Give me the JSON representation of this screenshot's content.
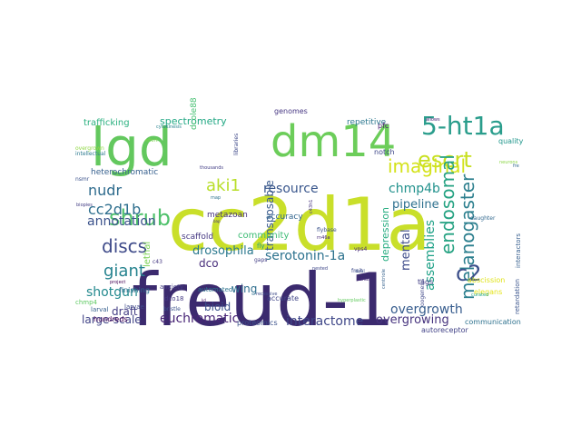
{
  "words": [
    {
      "text": "freud-1",
      "color": "#3b2a6e"
    },
    {
      "text": "cc2d1a",
      "color": "#c9df2a"
    },
    {
      "text": "lgd",
      "color": "#63c85e"
    },
    {
      "text": "dm14",
      "color": "#6ccd5a"
    },
    {
      "text": "5-ht1a",
      "color": "#2a9d8c"
    },
    {
      "text": "escrt",
      "color": "#c8e020"
    },
    {
      "text": "shrub",
      "color": "#4fc16b"
    },
    {
      "text": "melanogaster",
      "color": "#2c7f8e"
    },
    {
      "text": "imaginal",
      "color": "#d4e21a"
    },
    {
      "text": "cc2d1b",
      "color": "#2e6f8e"
    },
    {
      "text": "endosomal",
      "color": "#25a282"
    },
    {
      "text": "c2",
      "color": "#3c4f8a"
    },
    {
      "text": "discs",
      "color": "#3e4a89"
    },
    {
      "text": "giant",
      "color": "#26838f"
    },
    {
      "text": "nudr",
      "color": "#2f6c8e"
    },
    {
      "text": "aki1",
      "color": "#b8de29"
    },
    {
      "text": "chmp4b",
      "color": "#21918c"
    },
    {
      "text": "shotgun",
      "color": "#23898e"
    },
    {
      "text": "annotation",
      "color": "#3b528b"
    },
    {
      "text": "assemblies",
      "color": "#1fa187"
    },
    {
      "text": "serotonin-1a",
      "color": "#2c728e"
    },
    {
      "text": "euchromatic",
      "color": "#482576"
    },
    {
      "text": "interactome",
      "color": "#3f4788"
    },
    {
      "text": "overgrowth",
      "color": "#365c8d"
    },
    {
      "text": "drosophila",
      "color": "#2a788e"
    },
    {
      "text": "resource",
      "color": "#39568c"
    },
    {
      "text": "transposable",
      "color": "#38588c"
    },
    {
      "text": "pipeline",
      "color": "#2d708e"
    },
    {
      "text": "overgrowing",
      "color": "#46337e"
    },
    {
      "text": "large-scale",
      "color": "#414487"
    },
    {
      "text": "mental",
      "color": "#3e4c8a"
    },
    {
      "text": "wing",
      "color": "#2e6e8e"
    },
    {
      "text": "draft",
      "color": "#433d84"
    },
    {
      "text": "bioid",
      "color": "#3b518b"
    },
    {
      "text": "spectrometry",
      "color": "#22a884"
    },
    {
      "text": "dco",
      "color": "#472d7b"
    },
    {
      "text": "depression",
      "color": "#27ad81"
    },
    {
      "text": "community",
      "color": "#3dbc74"
    },
    {
      "text": "lethal",
      "color": "#7ad151"
    },
    {
      "text": "trafficking",
      "color": "#2ab07f"
    },
    {
      "text": "dcole88",
      "color": "#44bf70"
    },
    {
      "text": "heterochromatic",
      "color": "#355f8d"
    },
    {
      "text": "metazoan",
      "color": "#46327e"
    },
    {
      "text": "scaffold",
      "color": "#453882"
    },
    {
      "text": "accuracy",
      "color": "#32658e"
    },
    {
      "text": "genomes",
      "color": "#453581"
    },
    {
      "text": "repetitive",
      "color": "#2a768e"
    },
    {
      "text": "pfc",
      "color": "#482071"
    },
    {
      "text": "notch",
      "color": "#3f4889"
    },
    {
      "text": "quality",
      "color": "#1f968b"
    },
    {
      "text": "communication",
      "color": "#2d718e"
    },
    {
      "text": "retardation",
      "color": "#3a548c"
    },
    {
      "text": "interactors",
      "color": "#355e8d"
    },
    {
      "text": "autoreceptor",
      "color": "#414287"
    },
    {
      "text": "abscission",
      "color": "#dfe318"
    },
    {
      "text": "elegans",
      "color": "#e5e419"
    },
    {
      "text": "tags",
      "color": "#433e85"
    },
    {
      "text": "proteomics",
      "color": "#3b518b"
    },
    {
      "text": "accurate",
      "color": "#404688"
    },
    {
      "text": "finishing",
      "color": "#2e6d8e"
    },
    {
      "text": "automated",
      "color": "#2c738e"
    },
    {
      "text": "larvae",
      "color": "#3e4a89"
    },
    {
      "text": "anxiety",
      "color": "#433d84"
    },
    {
      "text": "dco18",
      "color": "#443a83"
    },
    {
      "text": "bristle",
      "color": "#3b518b"
    },
    {
      "text": "hundreds",
      "color": "#440154"
    },
    {
      "text": "larval",
      "color": "#355f8d"
    },
    {
      "text": "chmp4",
      "color": "#5ec962"
    },
    {
      "text": "intellectual",
      "color": "#2a788e"
    },
    {
      "text": "overgrown",
      "color": "#8fd744"
    },
    {
      "text": "nsmr",
      "color": "#3b528b"
    },
    {
      "text": "vps4",
      "color": "#482878"
    },
    {
      "text": "fruit",
      "color": "#3e4a89"
    },
    {
      "text": "flybase",
      "color": "#3b528b"
    },
    {
      "text": "rn46a",
      "color": "#472a7a"
    },
    {
      "text": "c43h1",
      "color": "#46337e"
    },
    {
      "text": "oogenesis",
      "color": "#3f4788"
    },
    {
      "text": "fly",
      "color": "#1fa088"
    },
    {
      "text": "gaps",
      "color": "#433e85"
    },
    {
      "text": "c43",
      "color": "#453781"
    },
    {
      "text": "nested",
      "color": "#3f4889"
    },
    {
      "text": "daughter",
      "color": "#31688e"
    },
    {
      "text": "thousands",
      "color": "#433e85"
    },
    {
      "text": "libraries",
      "color": "#3e4989"
    },
    {
      "text": "cytokinesis",
      "color": "#26828e"
    },
    {
      "text": "effort",
      "color": "#7fd34e"
    },
    {
      "text": "curated",
      "color": "#21a685"
    },
    {
      "text": "fre",
      "color": "#31688e"
    },
    {
      "text": "allows",
      "color": "#482475"
    },
    {
      "text": "recessive",
      "color": "#3e4c8a"
    },
    {
      "text": "dual",
      "color": "#3b528b"
    },
    {
      "text": "cdnas",
      "color": "#472c7a"
    },
    {
      "text": "project",
      "color": "#440154"
    },
    {
      "text": "biopies",
      "color": "#433d84"
    },
    {
      "text": "map",
      "color": "#2c738e"
    },
    {
      "text": "hyperplastic",
      "color": "#63cb5f"
    },
    {
      "text": "centriole",
      "color": "#34618d"
    },
    {
      "text": "neurons",
      "color": "#8bd646"
    },
    {
      "text": "kd",
      "color": "#481467"
    },
    {
      "text": "bap",
      "color": "#46307e"
    }
  ]
}
